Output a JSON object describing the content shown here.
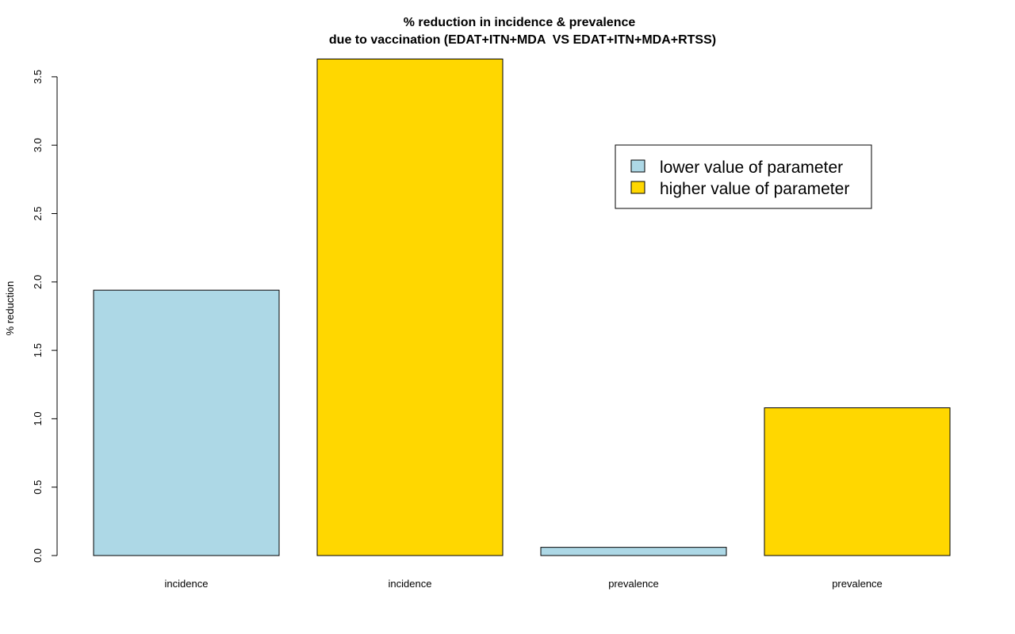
{
  "chart_data": {
    "type": "bar",
    "title": "% reduction in incidence & prevalence",
    "subtitle": "due to vaccination (EDAT+ITN+MDA  VS EDAT+ITN+MDA+RTSS)",
    "xlabel": "",
    "ylabel": "% reduction",
    "ylim": [
      0,
      3.65
    ],
    "yticks": [
      "0.0",
      "0.5",
      "1.0",
      "1.5",
      "2.0",
      "2.5",
      "3.0",
      "3.5"
    ],
    "grid": false,
    "legend_position": "top-right",
    "bars": [
      {
        "label": "incidence",
        "value": 1.94,
        "series": "lower"
      },
      {
        "label": "incidence",
        "value": 3.63,
        "series": "higher"
      },
      {
        "label": "prevalence",
        "value": 0.06,
        "series": "lower"
      },
      {
        "label": "prevalence",
        "value": 1.08,
        "series": "higher"
      }
    ],
    "series": [
      {
        "id": "lower",
        "name": "lower value of parameter",
        "color": "#ADD8E6"
      },
      {
        "id": "higher",
        "name": "higher value of parameter",
        "color": "#FFD700"
      }
    ]
  }
}
